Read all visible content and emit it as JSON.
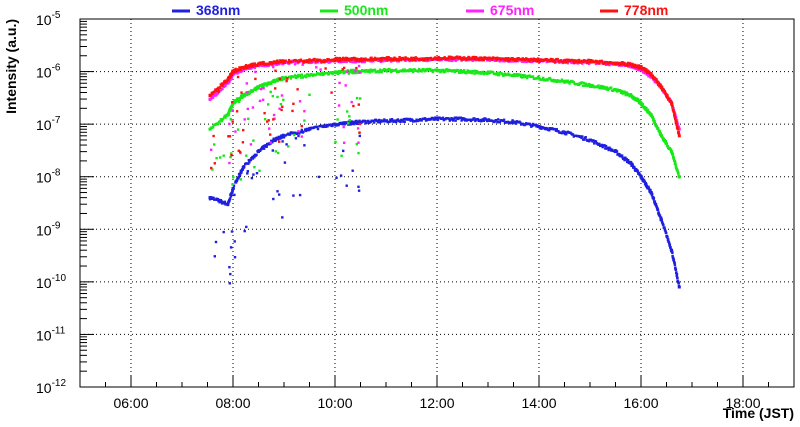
{
  "chart_data": {
    "type": "scatter",
    "title": "",
    "xlabel": "Time (JST)",
    "ylabel": "Intensity (a.u.)",
    "xscale": "linear",
    "yscale": "log",
    "xlim": [
      5.0,
      19.0
    ],
    "ylim": [
      1e-12,
      1e-05
    ],
    "grid": true,
    "legend_position": "top",
    "x_ticks": [
      {
        "value": 6,
        "label": "06:00"
      },
      {
        "value": 8,
        "label": "08:00"
      },
      {
        "value": 10,
        "label": "10:00"
      },
      {
        "value": 12,
        "label": "12:00"
      },
      {
        "value": 14,
        "label": "14:00"
      },
      {
        "value": 16,
        "label": "16:00"
      },
      {
        "value": 18,
        "label": "18:00"
      }
    ],
    "y_ticks": [
      {
        "exp": -12,
        "base": "10",
        "sup": "-12"
      },
      {
        "exp": -11,
        "base": "10",
        "sup": "-11"
      },
      {
        "exp": -10,
        "base": "10",
        "sup": "-10"
      },
      {
        "exp": -9,
        "base": "10",
        "sup": "-9"
      },
      {
        "exp": -8,
        "base": "10",
        "sup": "-8"
      },
      {
        "exp": -7,
        "base": "10",
        "sup": "-7"
      },
      {
        "exp": -6,
        "base": "10",
        "sup": "-6"
      },
      {
        "exp": -5,
        "base": "10",
        "sup": "-5"
      }
    ],
    "series": [
      {
        "name": "368nm",
        "color": "#1f1fe0",
        "x": [
          7.55,
          7.9,
          8.0,
          8.2,
          8.5,
          8.8,
          9.0,
          9.5,
          10.0,
          10.3,
          10.5,
          11.0,
          11.5,
          12.0,
          12.5,
          13.0,
          13.5,
          14.0,
          14.5,
          15.0,
          15.5,
          15.8,
          16.0,
          16.2,
          16.4,
          16.6,
          16.75
        ],
        "y": [
          4e-09,
          3e-09,
          6e-09,
          1.5e-08,
          3e-08,
          5e-08,
          6e-08,
          8e-08,
          1e-07,
          1.05e-07,
          1.1e-07,
          1.15e-07,
          1.2e-07,
          1.25e-07,
          1.25e-07,
          1.2e-07,
          1.1e-07,
          9e-08,
          7e-08,
          5e-08,
          3e-08,
          1.8e-08,
          1e-08,
          5e-09,
          1.5e-09,
          4e-10,
          8e-11
        ]
      },
      {
        "name": "500nm",
        "color": "#18e818",
        "x": [
          7.55,
          7.9,
          8.0,
          8.2,
          8.5,
          8.8,
          9.0,
          9.5,
          10.0,
          10.3,
          10.5,
          11.0,
          11.5,
          12.0,
          12.5,
          13.0,
          13.5,
          14.0,
          14.5,
          15.0,
          15.5,
          15.8,
          16.0,
          16.2,
          16.4,
          16.6,
          16.75
        ],
        "y": [
          8e-08,
          1.5e-07,
          2.5e-07,
          3.5e-07,
          5e-07,
          6.5e-07,
          7.5e-07,
          8.5e-07,
          9.5e-07,
          1e-06,
          1e-06,
          1.05e-06,
          1.05e-06,
          1.05e-06,
          1e-06,
          9.5e-07,
          8.5e-07,
          7.5e-07,
          6.5e-07,
          5.5e-07,
          4.5e-07,
          3.5e-07,
          2.5e-07,
          1.5e-07,
          6e-08,
          3e-08,
          1e-08
        ]
      },
      {
        "name": "675nm",
        "color": "#ff22ff",
        "x": [
          7.55,
          7.9,
          8.0,
          8.2,
          8.5,
          8.8,
          9.0,
          9.5,
          10.0,
          10.3,
          10.5,
          11.0,
          11.5,
          12.0,
          12.5,
          13.0,
          13.5,
          14.0,
          14.5,
          15.0,
          15.5,
          15.8,
          16.0,
          16.2,
          16.4,
          16.6,
          16.75
        ],
        "y": [
          3e-07,
          6e-07,
          9e-07,
          1.1e-06,
          1.3e-06,
          1.4e-06,
          1.5e-06,
          1.55e-06,
          1.6e-06,
          1.6e-06,
          1.6e-06,
          1.65e-06,
          1.7e-06,
          1.7e-06,
          1.7e-06,
          1.7e-06,
          1.65e-06,
          1.6e-06,
          1.55e-06,
          1.5e-06,
          1.4e-06,
          1.3e-06,
          1.1e-06,
          8e-07,
          5e-07,
          2.5e-07,
          8e-08
        ]
      },
      {
        "name": "778nm",
        "color": "#ff1111",
        "x": [
          7.55,
          7.9,
          8.0,
          8.2,
          8.5,
          8.8,
          9.0,
          9.5,
          10.0,
          10.3,
          10.5,
          11.0,
          11.5,
          12.0,
          12.5,
          13.0,
          13.5,
          14.0,
          14.5,
          15.0,
          15.5,
          15.8,
          16.0,
          16.2,
          16.4,
          16.6,
          16.75
        ],
        "y": [
          3.5e-07,
          7e-07,
          1e-06,
          1.2e-06,
          1.4e-06,
          1.5e-06,
          1.55e-06,
          1.6e-06,
          1.7e-06,
          1.7e-06,
          1.7e-06,
          1.75e-06,
          1.75e-06,
          1.8e-06,
          1.8e-06,
          1.75e-06,
          1.7e-06,
          1.65e-06,
          1.6e-06,
          1.55e-06,
          1.45e-06,
          1.35e-06,
          1.2e-06,
          9e-07,
          5e-07,
          2.5e-07,
          6e-08
        ]
      }
    ]
  }
}
